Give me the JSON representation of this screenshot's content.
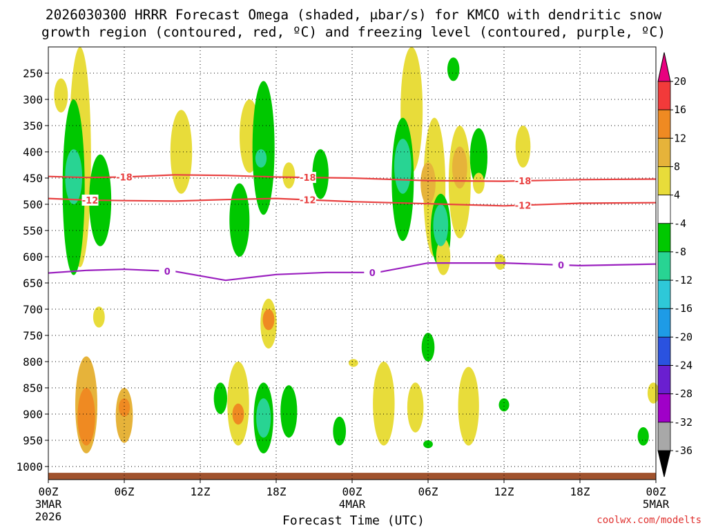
{
  "title_line1": "2026030300 HRRR Forecast Omega (shaded, μbar/s) for KMCO with dendritic snow",
  "title_line2": "growth region (contoured, red, ºC) and freezing level (contoured, purple, ºC)",
  "credit": "coolwx.com/modelts",
  "chart_data": {
    "type": "heatmap",
    "title": "2026030300 HRRR Forecast Omega (shaded, μbar/s) for KMCO with dendritic snow growth region (contoured, red, ºC) and freezing level (contoured, purple, ºC)",
    "xlabel": "Forecast Time (UTC)",
    "ylabel": "",
    "x_range_hours": [
      0,
      48
    ],
    "x_ticks": [
      {
        "hour": 0,
        "label": "00Z",
        "sub1": "3MAR",
        "sub2": "2026"
      },
      {
        "hour": 6,
        "label": "06Z",
        "sub1": "",
        "sub2": ""
      },
      {
        "hour": 12,
        "label": "12Z",
        "sub1": "",
        "sub2": ""
      },
      {
        "hour": 18,
        "label": "18Z",
        "sub1": "",
        "sub2": ""
      },
      {
        "hour": 24,
        "label": "00Z",
        "sub1": "4MAR",
        "sub2": ""
      },
      {
        "hour": 30,
        "label": "06Z",
        "sub1": "",
        "sub2": ""
      },
      {
        "hour": 36,
        "label": "12Z",
        "sub1": "",
        "sub2": ""
      },
      {
        "hour": 42,
        "label": "18Z",
        "sub1": "",
        "sub2": ""
      },
      {
        "hour": 48,
        "label": "00Z",
        "sub1": "5MAR",
        "sub2": ""
      }
    ],
    "y_range_hPa": [
      1025,
      200
    ],
    "y_ticks": [
      250,
      300,
      350,
      400,
      450,
      500,
      550,
      600,
      650,
      700,
      750,
      800,
      850,
      900,
      950,
      1000
    ],
    "grid": true,
    "colorbar": {
      "labels": [
        "20",
        "16",
        "12",
        "8",
        "4",
        "-4",
        "-8",
        "-12",
        "-16",
        "-20",
        "-24",
        "-28",
        "-32",
        "-36"
      ],
      "colors": [
        "#e8007f",
        "#f23a3a",
        "#ef8a22",
        "#e6b33a",
        "#e8dc3a",
        "#ffffff",
        "#00c800",
        "#28d493",
        "#2ec8d8",
        "#1e9be6",
        "#2a52e0",
        "#6a1fd0",
        "#a000c8",
        "#a8a8a8",
        "#000000"
      ]
    },
    "omega_cells": [
      {
        "hour": 1.0,
        "p_top": 260,
        "p_bot": 325,
        "value": 4
      },
      {
        "hour": 2.5,
        "p_top": 200,
        "p_bot": 620,
        "value": 4
      },
      {
        "hour": 2.0,
        "p_top": 300,
        "p_bot": 635,
        "value": -8
      },
      {
        "hour": 2.0,
        "p_top": 395,
        "p_bot": 500,
        "value": -12
      },
      {
        "hour": 4.1,
        "p_top": 405,
        "p_bot": 580,
        "value": -8
      },
      {
        "hour": 4.0,
        "p_top": 695,
        "p_bot": 735,
        "value": 4
      },
      {
        "hour": 3.0,
        "p_top": 790,
        "p_bot": 975,
        "value": 8
      },
      {
        "hour": 3.0,
        "p_top": 850,
        "p_bot": 960,
        "value": 12
      },
      {
        "hour": 6.0,
        "p_top": 850,
        "p_bot": 955,
        "value": 8
      },
      {
        "hour": 6.0,
        "p_top": 870,
        "p_bot": 905,
        "value": 12
      },
      {
        "hour": 10.5,
        "p_top": 320,
        "p_bot": 480,
        "value": 4
      },
      {
        "hour": 15.9,
        "p_top": 300,
        "p_bot": 440,
        "value": 4
      },
      {
        "hour": 15.1,
        "p_top": 460,
        "p_bot": 600,
        "value": -8
      },
      {
        "hour": 17.0,
        "p_top": 265,
        "p_bot": 520,
        "value": -8
      },
      {
        "hour": 16.8,
        "p_top": 395,
        "p_bot": 430,
        "value": -12
      },
      {
        "hour": 17.4,
        "p_top": 680,
        "p_bot": 775,
        "value": 4
      },
      {
        "hour": 17.4,
        "p_top": 700,
        "p_bot": 740,
        "value": 12
      },
      {
        "hour": 13.6,
        "p_top": 840,
        "p_bot": 900,
        "value": -8
      },
      {
        "hour": 15.0,
        "p_top": 800,
        "p_bot": 960,
        "value": 4
      },
      {
        "hour": 15.0,
        "p_top": 880,
        "p_bot": 920,
        "value": 12
      },
      {
        "hour": 17.0,
        "p_top": 840,
        "p_bot": 975,
        "value": -8
      },
      {
        "hour": 17.0,
        "p_top": 870,
        "p_bot": 945,
        "value": -12
      },
      {
        "hour": 19.0,
        "p_top": 845,
        "p_bot": 945,
        "value": -8
      },
      {
        "hour": 19.0,
        "p_top": 420,
        "p_bot": 470,
        "value": 4
      },
      {
        "hour": 21.5,
        "p_top": 395,
        "p_bot": 490,
        "value": -8
      },
      {
        "hour": 23.0,
        "p_top": 905,
        "p_bot": 960,
        "value": -8
      },
      {
        "hour": 24.1,
        "p_top": 795,
        "p_bot": 810,
        "value": 4
      },
      {
        "hour": 26.5,
        "p_top": 800,
        "p_bot": 960,
        "value": 4
      },
      {
        "hour": 29.0,
        "p_top": 840,
        "p_bot": 935,
        "value": 4
      },
      {
        "hour": 28.7,
        "p_top": 200,
        "p_bot": 440,
        "value": 4
      },
      {
        "hour": 28.0,
        "p_top": 335,
        "p_bot": 570,
        "value": -8
      },
      {
        "hour": 28.0,
        "p_top": 375,
        "p_bot": 480,
        "value": -12
      },
      {
        "hour": 30.5,
        "p_top": 335,
        "p_bot": 600,
        "value": 4
      },
      {
        "hour": 30.0,
        "p_top": 420,
        "p_bot": 500,
        "value": 8
      },
      {
        "hour": 31.0,
        "p_top": 480,
        "p_bot": 620,
        "value": -8
      },
      {
        "hour": 31.2,
        "p_top": 565,
        "p_bot": 635,
        "value": 4
      },
      {
        "hour": 31.0,
        "p_top": 500,
        "p_bot": 580,
        "value": -12
      },
      {
        "hour": 32.5,
        "p_top": 350,
        "p_bot": 565,
        "value": 4
      },
      {
        "hour": 32.5,
        "p_top": 390,
        "p_bot": 470,
        "value": 8
      },
      {
        "hour": 32.0,
        "p_top": 220,
        "p_bot": 265,
        "value": -8
      },
      {
        "hour": 34.0,
        "p_top": 355,
        "p_bot": 465,
        "value": -8
      },
      {
        "hour": 34.0,
        "p_top": 440,
        "p_bot": 480,
        "value": 4
      },
      {
        "hour": 33.2,
        "p_top": 810,
        "p_bot": 960,
        "value": 4
      },
      {
        "hour": 30.0,
        "p_top": 745,
        "p_bot": 800,
        "value": -8
      },
      {
        "hour": 30.0,
        "p_top": 950,
        "p_bot": 965,
        "value": -8
      },
      {
        "hour": 35.7,
        "p_top": 595,
        "p_bot": 625,
        "value": 4
      },
      {
        "hour": 36.0,
        "p_top": 870,
        "p_bot": 895,
        "value": -8
      },
      {
        "hour": 37.5,
        "p_top": 350,
        "p_bot": 430,
        "value": 4
      },
      {
        "hour": 47.0,
        "p_top": 925,
        "p_bot": 960,
        "value": -8
      },
      {
        "hour": 47.8,
        "p_top": 840,
        "p_bot": 880,
        "value": 4
      }
    ],
    "contours": [
      {
        "label": "-18",
        "color": "#e84040",
        "points": [
          [
            0,
            447
          ],
          [
            3,
            449
          ],
          [
            6,
            448
          ],
          [
            10,
            444
          ],
          [
            14,
            445
          ],
          [
            18,
            448
          ],
          [
            24,
            450
          ],
          [
            30,
            455
          ],
          [
            36,
            456
          ],
          [
            42,
            453
          ],
          [
            48,
            452
          ]
        ],
        "label_hours": [
          6,
          20.5,
          37.5
        ]
      },
      {
        "label": "-12",
        "color": "#e84040",
        "points": [
          [
            0,
            489
          ],
          [
            3,
            492
          ],
          [
            6,
            493
          ],
          [
            10,
            494
          ],
          [
            14,
            491
          ],
          [
            18,
            489
          ],
          [
            24,
            495
          ],
          [
            30,
            499
          ],
          [
            36,
            503
          ],
          [
            42,
            498
          ],
          [
            48,
            497
          ]
        ],
        "label_hours": [
          3.3,
          20.5,
          37.5
        ]
      },
      {
        "label": "0",
        "color": "#9a1fbf",
        "points": [
          [
            0,
            631
          ],
          [
            3,
            626
          ],
          [
            6,
            624
          ],
          [
            10,
            628
          ],
          [
            14,
            645
          ],
          [
            18,
            634
          ],
          [
            22,
            630
          ],
          [
            26,
            630
          ],
          [
            30,
            612
          ],
          [
            36,
            612
          ],
          [
            42,
            617
          ],
          [
            48,
            614
          ]
        ],
        "label_hours": [
          9.4,
          25.6,
          40.5
        ]
      }
    ]
  }
}
